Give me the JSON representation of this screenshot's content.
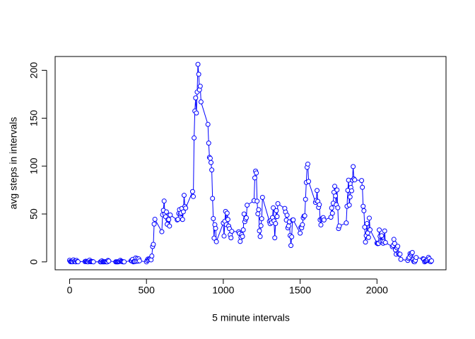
{
  "chart_data": {
    "type": "line",
    "xlabel": "5 minute intervals",
    "ylabel": "avg steps in intervals",
    "x": [
      0,
      5,
      10,
      15,
      20,
      25,
      30,
      35,
      40,
      45,
      50,
      55,
      100,
      105,
      110,
      115,
      120,
      125,
      130,
      135,
      140,
      145,
      150,
      155,
      200,
      205,
      210,
      215,
      220,
      225,
      230,
      235,
      240,
      245,
      250,
      255,
      300,
      305,
      310,
      315,
      320,
      325,
      330,
      335,
      340,
      345,
      350,
      355,
      400,
      405,
      410,
      415,
      420,
      425,
      430,
      435,
      440,
      445,
      450,
      455,
      500,
      505,
      510,
      515,
      520,
      525,
      530,
      535,
      540,
      545,
      550,
      555,
      600,
      605,
      610,
      615,
      620,
      625,
      630,
      635,
      640,
      645,
      650,
      655,
      700,
      705,
      710,
      715,
      720,
      725,
      730,
      735,
      740,
      745,
      750,
      755,
      800,
      805,
      810,
      815,
      820,
      825,
      830,
      835,
      840,
      845,
      850,
      855,
      900,
      905,
      910,
      915,
      920,
      925,
      930,
      935,
      940,
      945,
      950,
      955,
      1000,
      1005,
      1010,
      1015,
      1020,
      1025,
      1030,
      1035,
      1040,
      1045,
      1050,
      1055,
      1100,
      1105,
      1110,
      1115,
      1120,
      1125,
      1130,
      1135,
      1140,
      1145,
      1150,
      1155,
      1200,
      1205,
      1210,
      1215,
      1220,
      1225,
      1230,
      1235,
      1240,
      1245,
      1250,
      1255,
      1300,
      1305,
      1310,
      1315,
      1320,
      1325,
      1330,
      1335,
      1340,
      1345,
      1350,
      1355,
      1400,
      1405,
      1410,
      1415,
      1420,
      1425,
      1430,
      1435,
      1440,
      1445,
      1450,
      1455,
      1500,
      1505,
      1510,
      1515,
      1520,
      1525,
      1530,
      1535,
      1540,
      1545,
      1550,
      1555,
      1600,
      1605,
      1610,
      1615,
      1620,
      1625,
      1630,
      1635,
      1640,
      1645,
      1650,
      1655,
      1700,
      1705,
      1710,
      1715,
      1720,
      1725,
      1730,
      1735,
      1740,
      1745,
      1750,
      1755,
      1800,
      1805,
      1810,
      1815,
      1820,
      1825,
      1830,
      1835,
      1840,
      1845,
      1850,
      1855,
      1900,
      1905,
      1910,
      1915,
      1920,
      1925,
      1930,
      1935,
      1940,
      1945,
      1950,
      1955,
      2000,
      2005,
      2010,
      2015,
      2020,
      2025,
      2030,
      2035,
      2040,
      2045,
      2050,
      2055,
      2100,
      2105,
      2110,
      2115,
      2120,
      2125,
      2130,
      2135,
      2140,
      2145,
      2150,
      2155,
      2200,
      2205,
      2210,
      2215,
      2220,
      2225,
      2230,
      2235,
      2240,
      2245,
      2250,
      2255,
      2300,
      2305,
      2310,
      2315,
      2320,
      2325,
      2330,
      2335,
      2340,
      2345,
      2350,
      2355
    ],
    "series": [
      {
        "color": "#0000ff",
        "values": [
          1.7,
          0.3,
          0.1,
          0.2,
          0.1,
          2.1,
          0.5,
          0.9,
          0,
          1.5,
          0.3,
          0.1,
          0.3,
          0.7,
          0.2,
          0.3,
          0,
          1.1,
          1.8,
          0.2,
          0.2,
          0.4,
          0.3,
          0,
          0,
          0,
          1.1,
          0,
          0,
          0.1,
          0,
          0.2,
          0,
          0,
          1.5,
          0.9,
          0,
          0,
          0,
          0,
          0.2,
          0.6,
          1.6,
          0.6,
          0.5,
          0.1,
          0,
          0,
          1.2,
          0.9,
          2.6,
          0,
          0.3,
          0.4,
          4.1,
          0.7,
          3.5,
          0.8,
          3.1,
          1.1,
          0,
          1.6,
          3,
          2.2,
          3.3,
          3,
          2.1,
          6.1,
          16,
          18.3,
          39.5,
          44.5,
          31.5,
          49.3,
          53.8,
          63.5,
          50,
          47.1,
          52.2,
          39.3,
          44,
          44.2,
          37.4,
          49,
          43.8,
          44.4,
          50.5,
          54.5,
          49.9,
          51,
          55.7,
          44.3,
          52.3,
          69.5,
          57.8,
          56.2,
          73.4,
          68.2,
          129.4,
          157.5,
          171.2,
          155.4,
          177.3,
          206.2,
          195.9,
          179.6,
          183.4,
          167,
          143.5,
          124,
          109.1,
          108.1,
          103.7,
          96,
          66.2,
          45.2,
          24.8,
          38.8,
          35,
          21.1,
          40.6,
          27,
          42.4,
          52.7,
          38.9,
          50.8,
          44.3,
          37.4,
          34.7,
          28.3,
          25.1,
          31.9,
          31.4,
          29.7,
          21.3,
          25.5,
          28.4,
          26.5,
          33.4,
          50,
          42,
          44.6,
          46,
          59.2,
          63.9,
          87.7,
          94.8,
          92.8,
          63.4,
          50.2,
          54.5,
          32.4,
          26.5,
          37.7,
          45.1,
          67.3,
          42.3,
          39.9,
          43.3,
          41,
          46.2,
          56.4,
          42.8,
          25.1,
          40,
          53.5,
          47.3,
          60.8,
          55.8,
          52,
          43.6,
          48.7,
          35.5,
          37.5,
          41.8,
          27.5,
          17.1,
          26.1,
          43.6,
          43.8,
          30,
          36.1,
          35.5,
          38.8,
          46,
          47.8,
          48.1,
          65.3,
          82.9,
          98.7,
          102.1,
          84,
          62.1,
          64.1,
          74.5,
          63.2,
          56.9,
          59.8,
          43.9,
          38.6,
          44.7,
          45.5,
          46.2,
          43.7,
          46.6,
          56.3,
          50.7,
          61.2,
          72.7,
          78.9,
          68.9,
          59.7,
          75.1,
          56.5,
          34.8,
          37.5,
          40.7,
          58,
          74.7,
          85.3,
          59.3,
          67.8,
          77.7,
          74.2,
          85.3,
          99.5,
          86.6,
          85.6,
          84.9,
          77.8,
          58,
          53.4,
          36.3,
          20.7,
          27.4,
          40,
          30.2,
          25.5,
          45.7,
          33.5,
          19.6,
          19,
          19.3,
          33.3,
          26.8,
          21.2,
          27.3,
          21.3,
          19.5,
          21.3,
          32.3,
          20.2,
          15.9,
          17.2,
          23.5,
          19.2,
          12.5,
          8,
          14.7,
          16.3,
          8.7,
          7.8,
          8.1,
          2.6,
          1.5,
          3.7,
          4.8,
          8.5,
          7.1,
          8.7,
          9.8,
          2.2,
          0.3,
          0.1,
          1.6,
          4.6,
          3.3,
          2.8,
          0,
          0.8,
          1,
          1.6,
          2.6,
          4.7,
          3.3,
          0.6,
          0.2,
          1.1
        ]
      }
    ],
    "xlim": [
      -94.2,
      2449.2
    ],
    "ylim": [
      -8.25,
      214.4
    ],
    "xticks": [
      0,
      500,
      1000,
      1500,
      2000
    ],
    "yticks": [
      0,
      50,
      100,
      150,
      200
    ]
  }
}
